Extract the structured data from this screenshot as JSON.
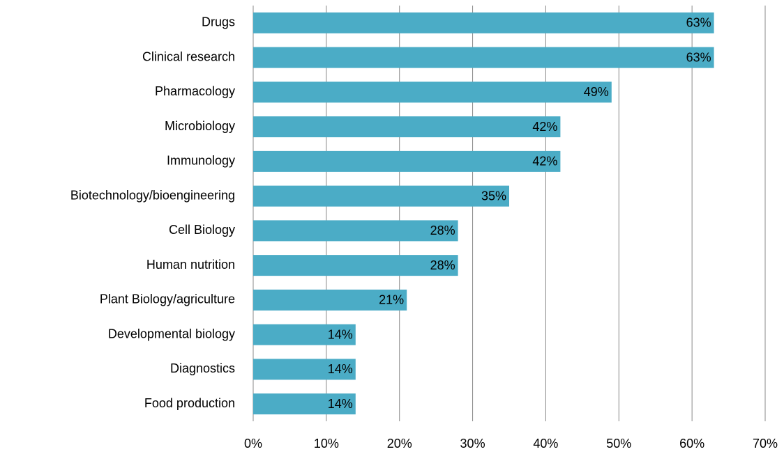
{
  "chart_data": {
    "type": "barh",
    "categories": [
      "Drugs",
      "Clinical research",
      "Pharmacology",
      "Microbiology",
      "Immunology",
      "Biotechnology/bioengineering",
      "Cell Biology",
      "Human nutrition",
      "Plant Biology/agriculture",
      "Developmental biology",
      "Diagnostics",
      "Food production"
    ],
    "values": [
      63,
      63,
      49,
      42,
      42,
      35,
      28,
      28,
      21,
      14,
      14,
      14
    ],
    "value_labels": [
      "63%",
      "63%",
      "49%",
      "42%",
      "42%",
      "35%",
      "28%",
      "28%",
      "21%",
      "14%",
      "14%",
      "14%"
    ],
    "color": "#4bacc6",
    "xlim": [
      0,
      70
    ],
    "xticks": [
      {
        "value": 0,
        "label": "0%"
      },
      {
        "value": 10,
        "label": "10%"
      },
      {
        "value": 20,
        "label": "20%"
      },
      {
        "value": 30,
        "label": "30%"
      },
      {
        "value": 40,
        "label": "40%"
      },
      {
        "value": 50,
        "label": "50%"
      },
      {
        "value": 60,
        "label": "60%"
      },
      {
        "value": 70,
        "label": "70%"
      }
    ],
    "grid": true
  }
}
